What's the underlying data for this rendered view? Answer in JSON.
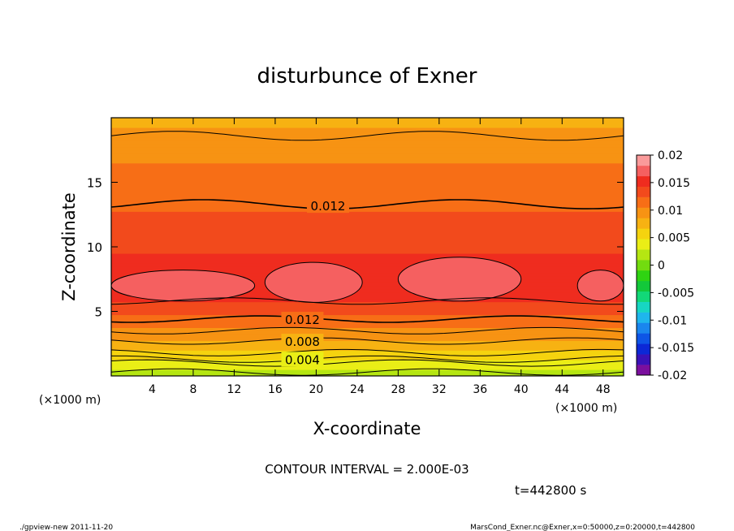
{
  "chart_data": {
    "type": "contour",
    "title": "disturbunce of Exner",
    "xlabel": "X-coordinate",
    "ylabel": "Z-coordinate",
    "x_unit_left": "(×1000 m)",
    "x_unit_right": "(×1000 m)",
    "xlim": [
      0,
      50
    ],
    "ylim": [
      0,
      20
    ],
    "x_ticks": [
      4,
      8,
      12,
      16,
      20,
      24,
      28,
      32,
      36,
      40,
      44,
      48
    ],
    "y_ticks": [
      5,
      10,
      15
    ],
    "colorbar": {
      "levels": [
        -0.02,
        -0.015,
        -0.01,
        -0.005,
        0,
        0.005,
        0.01,
        0.015,
        0.02
      ],
      "labels": [
        "-0.02",
        "-0.015",
        "-0.01",
        "-0.005",
        "0",
        "0.005",
        "0.01",
        "0.015",
        "0.02"
      ],
      "bands": [
        "#7b0f9e",
        "#3a12b8",
        "#0c28d6",
        "#0e55e6",
        "#1a86ee",
        "#1fb6ec",
        "#17d6c2",
        "#12d878",
        "#13c83a",
        "#2fd312",
        "#72dc0f",
        "#b5e612",
        "#eaee16",
        "#f5d30f",
        "#f7b212",
        "#f79313",
        "#f76e16",
        "#f24a1c",
        "#ef2c1f",
        "#f56060",
        "#fa9a9a"
      ]
    },
    "contour_interval": "CONTOUR INTERVAL = 2.000E-03",
    "contour_labels": [
      {
        "text": "0.012",
        "x": 21,
        "z": 13.2
      },
      {
        "text": "0.012",
        "x": 18.5,
        "z": 4.4
      },
      {
        "text": "0.008",
        "x": 18.5,
        "z": 2.7
      },
      {
        "text": "0.004",
        "x": 18.5,
        "z": 1.3
      }
    ],
    "levels_by_height": [
      {
        "z": 0.3,
        "value": 0.0025
      },
      {
        "z": 1.0,
        "value": 0.004
      },
      {
        "z": 1.8,
        "value": 0.006
      },
      {
        "z": 2.6,
        "value": 0.008
      },
      {
        "z": 3.5,
        "value": 0.01
      },
      {
        "z": 4.4,
        "value": 0.012
      },
      {
        "z": 6.0,
        "value": 0.0145
      },
      {
        "z": 7.0,
        "value": 0.0155
      },
      {
        "z": 10.0,
        "value": 0.014
      },
      {
        "z": 13.3,
        "value": 0.012
      },
      {
        "z": 16.5,
        "value": 0.0105
      },
      {
        "z": 18.6,
        "value": 0.009
      },
      {
        "z": 20.0,
        "value": 0.008
      }
    ],
    "high_cells": [
      {
        "xmin": 0,
        "xmax": 14,
        "zmin": 5.8,
        "zmax": 8.2
      },
      {
        "xmin": 15,
        "xmax": 24.5,
        "zmin": 5.7,
        "zmax": 8.8
      },
      {
        "xmin": 28,
        "xmax": 40,
        "zmin": 5.8,
        "zmax": 9.2
      },
      {
        "xmin": 45.5,
        "xmax": 50,
        "zmin": 5.8,
        "zmax": 8.2
      }
    ]
  },
  "time_label": "t=442800 s",
  "footer_left": "./gpview-new   2011-11-20",
  "footer_right": "MarsCond_Exner.nc@Exner,x=0:50000,z=0:20000,t=442800"
}
